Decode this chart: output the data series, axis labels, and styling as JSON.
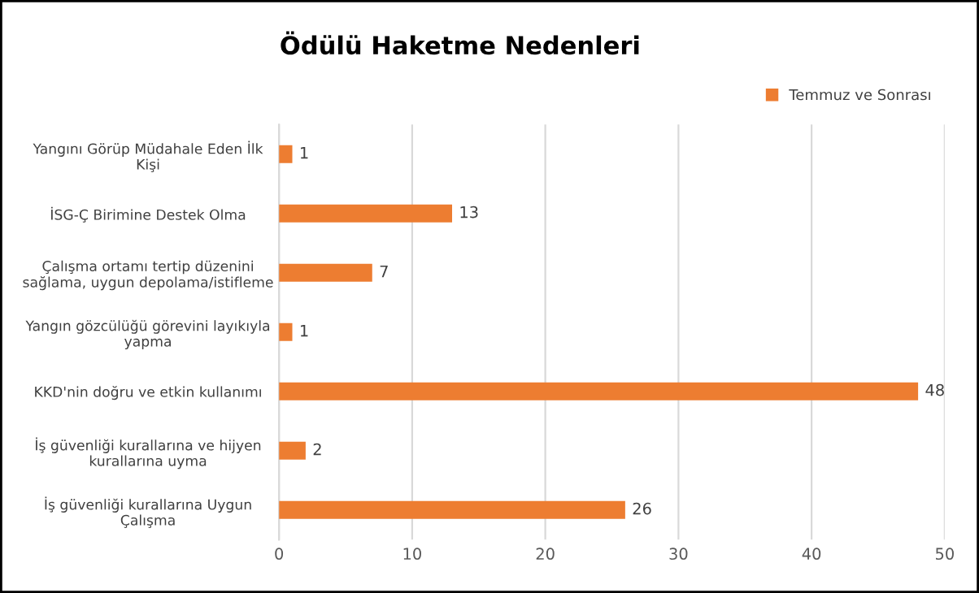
{
  "chart_data": {
    "type": "bar",
    "orientation": "horizontal",
    "title": "Ödülü Haketme Nedenleri",
    "categories": [
      "Yangını Görüp Müdahale Eden İlk\nKişi",
      "İSG-Ç Birimine Destek Olma",
      "Çalışma ortamı tertip düzenini\nsağlama, uygun depolama/istifleme",
      "Yangın gözcülüğü görevini layıkıyla\nyapma",
      "KKD'nin doğru ve etkin kullanımı",
      "İş güvenliği kurallarına ve hijyen\nkurallarına uyma",
      "İş güvenliği kurallarına Uygun\nÇalışma"
    ],
    "series": [
      {
        "name": "Temmuz ve Sonrası",
        "color": "#ed7d31",
        "values": [
          1,
          13,
          7,
          1,
          48,
          2,
          26
        ]
      }
    ],
    "xlim": [
      0,
      50
    ],
    "xticks": [
      0,
      10,
      20,
      30,
      40,
      50
    ],
    "grid": "x",
    "legend": "top right",
    "data_labels": true
  }
}
